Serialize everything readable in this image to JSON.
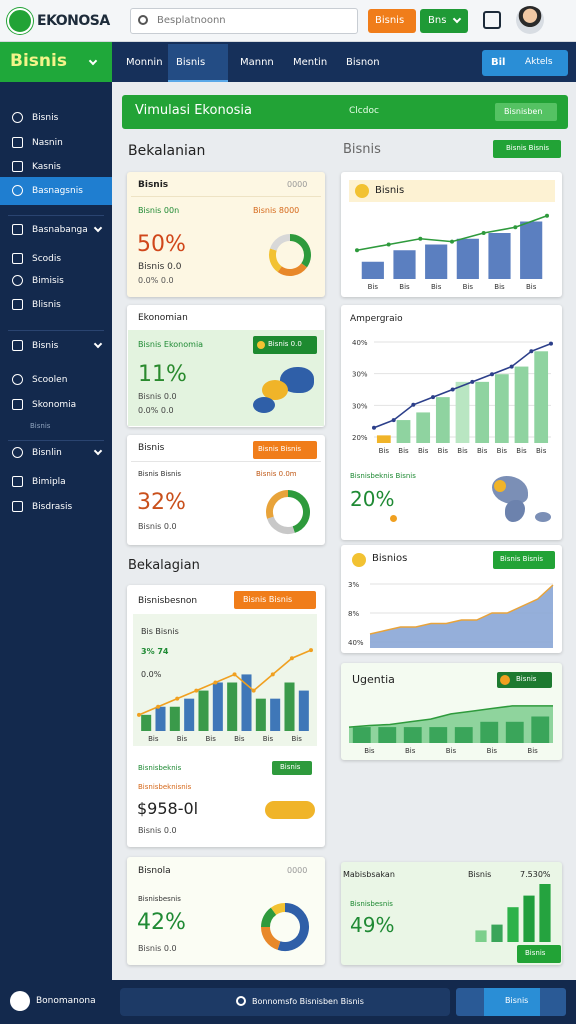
{
  "topbar": {
    "logo": "EKONOSA",
    "search_placeholder": "Besplatnoonn",
    "orange_button": "Bisnis",
    "green_button": "Bns"
  },
  "nav": {
    "brand": "Bisnis",
    "tabs": [
      "Monnin",
      "Bisnis",
      "Mannn",
      "Mentin",
      "Bisnon"
    ],
    "action_label": "Bil",
    "action_button": "Aktels"
  },
  "sidebar": {
    "items": [
      "Bisnis",
      "Nasnin",
      "Kasnis",
      "Basnagsnis",
      "Basnabanga",
      "Scodis",
      "Bimisis",
      "Blisnis",
      "Bisnis",
      "Scoolen",
      "Skonomia",
      "Bisnis",
      "Bisnlin",
      "Bimipla",
      "Bisdrasis"
    ]
  },
  "banner": {
    "title": "Vimulasi Ekonosia",
    "subtitle": "Clcdoc",
    "button": "Bisnisben"
  },
  "left": {
    "heading": "Bekalanian",
    "heading_2": "Bekalagian",
    "card_1": {
      "title": "Bisnis",
      "code": "0000",
      "label_1": "Bisnis 00n",
      "label_2": "Bisnis 8000",
      "value": "50%",
      "sub": "Bisnis 0.0",
      "foot": "0.0%  0.0",
      "donut": {
        "values": [
          35,
          25,
          20,
          20
        ],
        "colors": [
          "#2e9a3c",
          "#e8882a",
          "#f2c232",
          "#d8d8d8"
        ]
      }
    },
    "card_2": {
      "title": "Ekonomian",
      "label": "Bisnis Ekonomia",
      "pill": "Bisnis 0.0",
      "value": "11%",
      "sub": "Bisnis 0.0",
      "foot": "0.0%  0.0"
    },
    "card_3": {
      "title": "Bisnis",
      "pill": "Bisnis Bisnis",
      "label_1": "Bisnis Bisnis",
      "label_2": "Bisnis 0.0m",
      "value": "32%",
      "sub": "Bisnis 0.0",
      "donut": {
        "values": [
          45,
          25,
          30
        ],
        "colors": [
          "#2e9a3c",
          "#c8c8c8",
          "#e8a33a"
        ]
      }
    },
    "card_4": {
      "title": "Bisnisbesnon",
      "button": "Bisnis Bisnis",
      "legend_1": "Bis Bisnis",
      "legend_2": "3% 74",
      "legend_3": "0.0%",
      "chart": {
        "ylim": [
          0,
          12
        ],
        "bars": [
          2,
          3,
          3,
          4,
          5,
          6,
          6,
          7,
          4,
          4,
          6,
          5
        ],
        "bar_colors": [
          "#3a9a4a",
          "#3f77b8"
        ],
        "line": [
          2,
          3,
          4,
          5,
          6,
          7,
          5,
          7,
          9,
          10
        ],
        "line_color": "#f0a020",
        "xlabels": [
          "Bis",
          "Bis",
          "Bis",
          "Bis",
          "Bis",
          "Bis"
        ]
      },
      "label_1": "Bisnisbeknis",
      "label_2": "Bisnisbeknisnis",
      "pill": "Bisnis",
      "value": "$958-0l",
      "foot": "Bisnis 0.0"
    },
    "card_5": {
      "title": "Bisnola",
      "code": "0000",
      "label": "Bisnisbesnis",
      "value": "42%",
      "foot": "Bisnis 0.0",
      "donut": {
        "values": [
          55,
          20,
          15,
          10
        ],
        "colors": [
          "#2f5fa8",
          "#e8882a",
          "#2e9a3c",
          "#f2c232"
        ]
      }
    }
  },
  "right": {
    "heading": "Bisnis",
    "heading_button": "Bisnis Bisnis",
    "card_a": {
      "title": "Bisnis",
      "chart": {
        "ylim": [
          0,
          12
        ],
        "bars": [
          3,
          5,
          6,
          7,
          8,
          10
        ],
        "bar_color": "#5b7fc0",
        "line": [
          5,
          6,
          7,
          6.5,
          8,
          9,
          11
        ],
        "line_color": "#2e9a3c",
        "xlabels": [
          "Bis",
          "Bis",
          "Bis",
          "Bis",
          "Bis",
          "Bis"
        ]
      }
    },
    "card_b": {
      "title": "Ampergraio",
      "label": "Bisnisbeknis Bisnis",
      "value": "20%",
      "chart": {
        "ylim": [
          0,
          14
        ],
        "bars": [
          1,
          3,
          4,
          6,
          8,
          8,
          9,
          10,
          12
        ],
        "bar_colors": [
          "#f0b429",
          "#8fd3a0",
          "#8fd3a0",
          "#8fd3a0",
          "#b9e6c2",
          "#8fd3a0",
          "#8fd3a0",
          "#8fd3a0",
          "#8fd3a0"
        ],
        "line": [
          2,
          3,
          5,
          6,
          7,
          8,
          9,
          10,
          12,
          13
        ],
        "line_color": "#2c3f8a",
        "ylabels": [
          "40%",
          "30%",
          "30%",
          "20%"
        ],
        "xlabels": [
          "Bis",
          "Bis",
          "Bis",
          "Bis",
          "Bis",
          "Bis",
          "Bis",
          "Bis",
          "Bis"
        ]
      }
    },
    "card_c": {
      "title": "Bisnios",
      "button": "Bisnis Bisnis",
      "chart": {
        "ylim": [
          0,
          10
        ],
        "area": [
          2,
          2.5,
          3,
          3,
          3.5,
          3.5,
          4,
          4,
          5,
          5,
          6,
          7,
          9
        ],
        "fill": "#8aa6d6",
        "line_color": "#e8a33a",
        "ylabels": [
          "3%",
          "8%",
          "40%"
        ]
      }
    },
    "card_d": {
      "title": "Ugentia",
      "pill": "Bisnis",
      "chart": {
        "ylim": [
          0,
          10
        ],
        "area": [
          3,
          3.3,
          3.5,
          4,
          4.5,
          5.5,
          6,
          6.5,
          7,
          7,
          7
        ],
        "fill": "#84cf93",
        "line_color": "#2e9a3c",
        "bars": [
          3,
          3,
          3,
          3,
          3,
          4,
          4,
          5
        ],
        "bar_color": "#3aa55a",
        "xlabels": [
          "Bis",
          "Bis",
          "Bis",
          "Bis",
          "Bis"
        ]
      }
    },
    "card_e": {
      "title": "Mabisbsakan",
      "label_1": "Bisnis",
      "label_2": "7.530%",
      "label": "Bisnisbesnis",
      "value": "49%",
      "button": "Bisnis",
      "chart": {
        "ylim": [
          0,
          10
        ],
        "bars": [
          2,
          3,
          6,
          8,
          10
        ],
        "bar_colors": [
          "#7ccf8c",
          "#3aa55a",
          "#2db24a",
          "#1f9e3c",
          "#25a33f"
        ]
      }
    }
  },
  "footer": {
    "brand": "Bonomanona",
    "search": "Bonnomsfo Bisnisben Bisnis",
    "button": "Bisnis"
  }
}
